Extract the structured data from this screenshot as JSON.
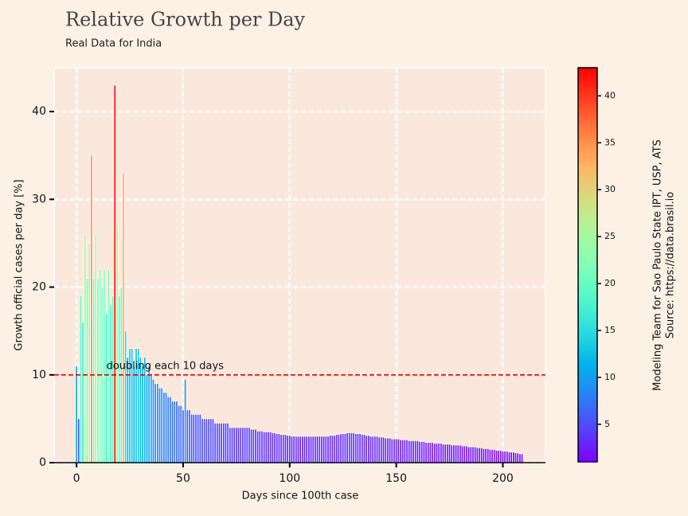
{
  "chart_data": {
    "type": "bar",
    "title": "Relative Growth per Day",
    "subtitle": "Real Data for India",
    "xlabel": "Days since 100th case",
    "ylabel": "Growth official cases per day [%]",
    "x": [
      0,
      1,
      2,
      3,
      4,
      5,
      6,
      7,
      8,
      9,
      10,
      11,
      12,
      13,
      14,
      15,
      16,
      17,
      18,
      19,
      20,
      21,
      22,
      23,
      24,
      25,
      26,
      27,
      28,
      29,
      30,
      31,
      32,
      33,
      34,
      35,
      36,
      37,
      38,
      39,
      40,
      41,
      42,
      43,
      44,
      45,
      46,
      47,
      48,
      49,
      50,
      51,
      52,
      53,
      54,
      55,
      56,
      57,
      58,
      59,
      60,
      61,
      62,
      63,
      64,
      65,
      66,
      67,
      68,
      69,
      70,
      71,
      72,
      73,
      74,
      75,
      76,
      77,
      78,
      79,
      80,
      81,
      82,
      83,
      84,
      85,
      86,
      87,
      88,
      89,
      90,
      91,
      92,
      93,
      94,
      95,
      96,
      97,
      98,
      99,
      100,
      101,
      102,
      103,
      104,
      105,
      106,
      107,
      108,
      109,
      110,
      111,
      112,
      113,
      114,
      115,
      116,
      117,
      118,
      119,
      120,
      121,
      122,
      123,
      124,
      125,
      126,
      127,
      128,
      129,
      130,
      131,
      132,
      133,
      134,
      135,
      136,
      137,
      138,
      139,
      140,
      141,
      142,
      143,
      144,
      145,
      146,
      147,
      148,
      149,
      150,
      151,
      152,
      153,
      154,
      155,
      156,
      157,
      158,
      159,
      160,
      161,
      162,
      163,
      164,
      165,
      166,
      167,
      168,
      169,
      170,
      171,
      172,
      173,
      174,
      175,
      176,
      177,
      178,
      179,
      180,
      181,
      182,
      183,
      184,
      185,
      186,
      187,
      188,
      189,
      190,
      191,
      192,
      193,
      194,
      195,
      196,
      197,
      198,
      199,
      200,
      201,
      202,
      203,
      204,
      205,
      206,
      207,
      208,
      209
    ],
    "values": [
      11,
      5,
      19,
      16,
      26,
      21,
      25,
      35,
      21,
      26,
      21,
      22,
      20,
      22,
      17,
      22,
      18,
      19,
      43,
      27,
      19,
      20,
      33,
      15,
      12,
      13,
      13,
      11,
      13,
      13,
      12,
      11,
      12,
      10,
      11,
      10,
      9.5,
      9,
      9,
      8.5,
      8.5,
      8,
      8,
      7.5,
      7.5,
      7,
      7,
      7,
      6.5,
      6.5,
      6,
      9.5,
      6,
      6,
      5.5,
      5.5,
      5.5,
      5.5,
      5.5,
      5,
      5,
      5,
      5,
      5,
      5,
      4.5,
      4.5,
      4.5,
      4.5,
      4.5,
      4.5,
      4.5,
      4,
      4,
      4,
      4,
      4,
      4,
      4,
      4,
      4,
      4,
      3.8,
      3.8,
      3.8,
      3.6,
      3.6,
      3.6,
      3.5,
      3.5,
      3.5,
      3.5,
      3.4,
      3.4,
      3.3,
      3.3,
      3.2,
      3.2,
      3.2,
      3.1,
      3.1,
      3,
      3,
      3,
      3,
      3,
      3,
      3,
      3,
      3,
      3,
      3,
      3,
      3,
      3,
      3,
      3,
      3,
      3,
      3.1,
      3.1,
      3.1,
      3.2,
      3.2,
      3.3,
      3.3,
      3.3,
      3.4,
      3.4,
      3.4,
      3.4,
      3.3,
      3.3,
      3.3,
      3.2,
      3.2,
      3.1,
      3.1,
      3,
      3,
      3,
      3,
      2.9,
      2.9,
      2.9,
      2.8,
      2.8,
      2.8,
      2.7,
      2.7,
      2.7,
      2.7,
      2.6,
      2.6,
      2.6,
      2.6,
      2.5,
      2.5,
      2.5,
      2.5,
      2.5,
      2.4,
      2.4,
      2.4,
      2.3,
      2.3,
      2.3,
      2.3,
      2.2,
      2.2,
      2.2,
      2.2,
      2.1,
      2.1,
      2.1,
      2.1,
      2,
      2,
      2,
      2,
      2,
      1.9,
      1.9,
      1.9,
      1.8,
      1.8,
      1.8,
      1.8,
      1.7,
      1.7,
      1.7,
      1.6,
      1.6,
      1.6,
      1.5,
      1.5,
      1.5,
      1.4,
      1.4,
      1.4,
      1.3,
      1.3,
      1.3,
      1.2,
      1.2,
      1.2,
      1.1,
      1.1,
      1.0,
      1.0
    ],
    "xlim": [
      -10.5,
      220
    ],
    "ylim": [
      0,
      45
    ],
    "xticks": [
      0,
      50,
      100,
      150,
      200
    ],
    "yticks": [
      0,
      10,
      20,
      30,
      40
    ],
    "grid": true,
    "colormap": "rainbow",
    "colorbar": {
      "lim": [
        1.0,
        43
      ],
      "ticks": [
        5,
        10,
        15,
        20,
        25,
        30,
        35,
        40
      ]
    },
    "reference_line": {
      "y": 10,
      "color": "#dd0000",
      "label": "doubling each 10 days"
    },
    "source": [
      "Modeling Team for Sao Paulo State IPT, USP, ATS",
      "Source: https://data.brasil.io"
    ]
  }
}
